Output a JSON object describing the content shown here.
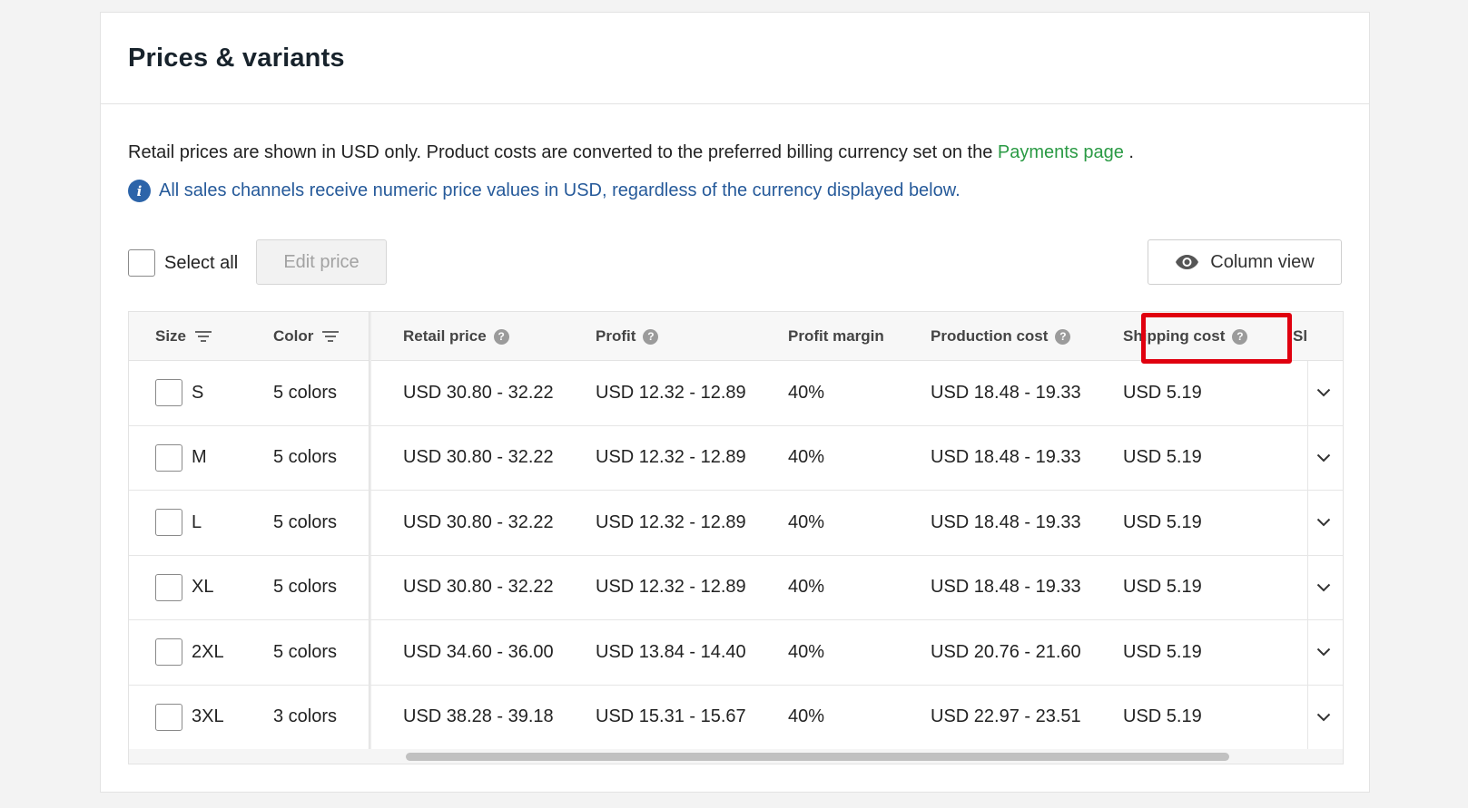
{
  "card": {
    "title": "Prices & variants",
    "intro_text": "Retail prices are shown in USD only. Product costs are converted to the preferred billing currency set on the ",
    "payments_link": "Payments page",
    "intro_suffix": " .",
    "info_text": "All sales channels receive numeric price values in USD, regardless of the currency displayed below."
  },
  "toolbar": {
    "select_all_label": "Select all",
    "edit_price_label": "Edit price",
    "column_view_label": "Column view"
  },
  "table": {
    "headers": {
      "size": "Size",
      "color": "Color",
      "retail_price": "Retail price",
      "profit": "Profit",
      "profit_margin": "Profit margin",
      "production_cost": "Production cost",
      "shipping_cost": "Shipping cost",
      "next_partial": "Sl"
    },
    "rows": [
      {
        "size": "S",
        "color": "5 colors",
        "retail": "USD 30.80 - 32.22",
        "profit": "USD 12.32 - 12.89",
        "margin": "40%",
        "production": "USD 18.48 - 19.33",
        "shipping": "USD 5.19"
      },
      {
        "size": "M",
        "color": "5 colors",
        "retail": "USD 30.80 - 32.22",
        "profit": "USD 12.32 - 12.89",
        "margin": "40%",
        "production": "USD 18.48 - 19.33",
        "shipping": "USD 5.19"
      },
      {
        "size": "L",
        "color": "5 colors",
        "retail": "USD 30.80 - 32.22",
        "profit": "USD 12.32 - 12.89",
        "margin": "40%",
        "production": "USD 18.48 - 19.33",
        "shipping": "USD 5.19"
      },
      {
        "size": "XL",
        "color": "5 colors",
        "retail": "USD 30.80 - 32.22",
        "profit": "USD 12.32 - 12.89",
        "margin": "40%",
        "production": "USD 18.48 - 19.33",
        "shipping": "USD 5.19"
      },
      {
        "size": "2XL",
        "color": "5 colors",
        "retail": "USD 34.60 - 36.00",
        "profit": "USD 13.84 - 14.40",
        "margin": "40%",
        "production": "USD 20.76 - 21.60",
        "shipping": "USD 5.19"
      },
      {
        "size": "3XL",
        "color": "3 colors",
        "retail": "USD 38.28 - 39.18",
        "profit": "USD 15.31 - 15.67",
        "margin": "40%",
        "production": "USD 22.97 - 23.51",
        "shipping": "USD 5.19"
      }
    ]
  },
  "icons": {
    "info": "info-icon",
    "help": "help-circle-icon",
    "filter": "filter-icon",
    "eye": "eye-icon",
    "chevron": "chevron-down-icon"
  },
  "colors": {
    "link_green": "#2a9a44",
    "info_blue": "#265a9a",
    "highlight_red": "#e0000f"
  }
}
